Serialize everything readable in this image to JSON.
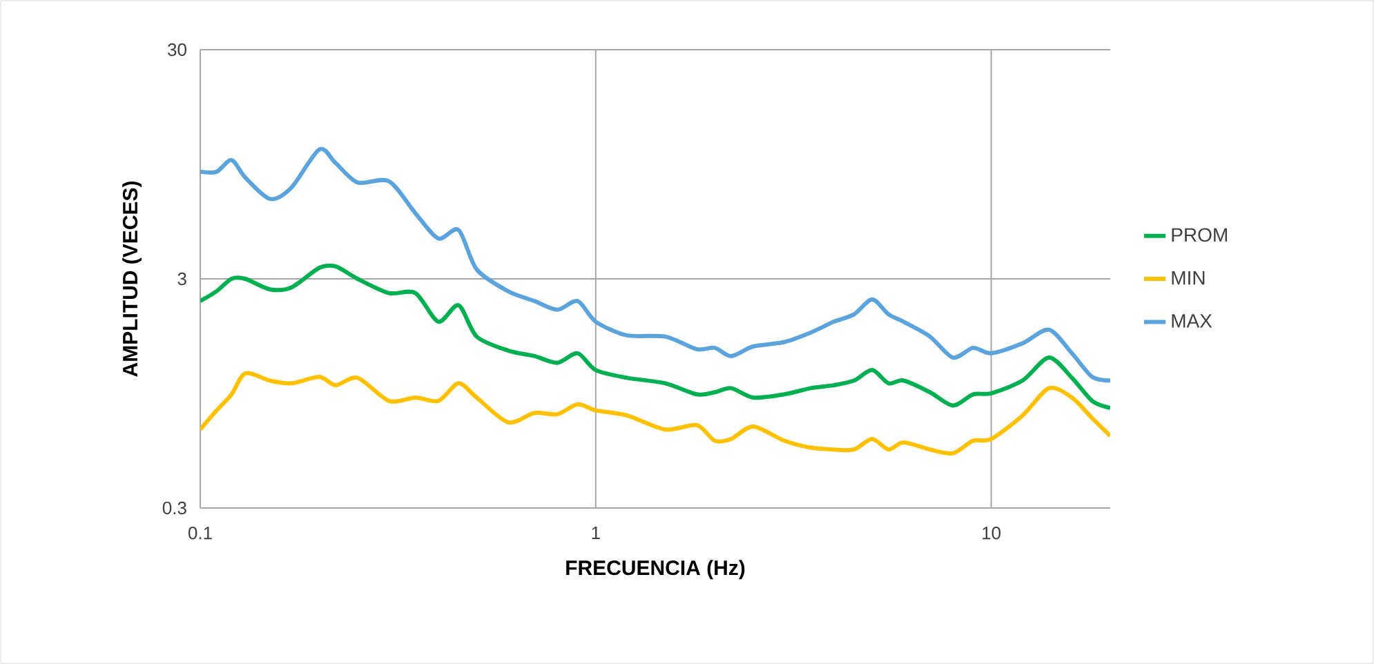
{
  "chart_data": {
    "type": "line",
    "xlabel": "FRECUENCIA (Hz)",
    "ylabel": "AMPLITUD (VECES)",
    "log": "xy",
    "grid": true,
    "legend": "right",
    "line_style": "solid",
    "marker": "none",
    "x": [
      0.1,
      0.11,
      0.12,
      0.13,
      0.15,
      0.17,
      0.2,
      0.22,
      0.25,
      0.3,
      0.35,
      0.4,
      0.45,
      0.5,
      0.6,
      0.7,
      0.8,
      0.9,
      1.0,
      1.2,
      1.5,
      1.8,
      2,
      2.2,
      2.5,
      3,
      3.5,
      4,
      4.5,
      5,
      5.5,
      6,
      7,
      8,
      9,
      10,
      12,
      14,
      16,
      18,
      20
    ],
    "xlim": [
      0.1,
      20
    ],
    "xticks": [
      0.1,
      1,
      10
    ],
    "ylim": [
      0.3,
      30
    ],
    "yticks": [
      0.3,
      3,
      30
    ],
    "series": [
      {
        "name": "PROM",
        "color": "#00b050",
        "values": [
          2.4,
          2.65,
          3.0,
          3.0,
          2.7,
          2.75,
          3.35,
          3.4,
          3.0,
          2.6,
          2.6,
          1.95,
          2.3,
          1.68,
          1.46,
          1.38,
          1.29,
          1.42,
          1.2,
          1.11,
          1.05,
          0.94,
          0.96,
          1.0,
          0.91,
          0.94,
          1.0,
          1.03,
          1.08,
          1.2,
          1.05,
          1.08,
          0.96,
          0.84,
          0.94,
          0.95,
          1.08,
          1.36,
          1.11,
          0.88,
          0.82
        ]
      },
      {
        "name": "MIN",
        "color": "#ffc000",
        "values": [
          0.66,
          0.8,
          0.94,
          1.16,
          1.08,
          1.05,
          1.12,
          1.03,
          1.11,
          0.88,
          0.91,
          0.88,
          1.05,
          0.91,
          0.71,
          0.78,
          0.77,
          0.85,
          0.8,
          0.76,
          0.66,
          0.69,
          0.59,
          0.6,
          0.68,
          0.59,
          0.55,
          0.54,
          0.54,
          0.6,
          0.54,
          0.58,
          0.54,
          0.52,
          0.59,
          0.6,
          0.76,
          1.0,
          0.91,
          0.74,
          0.62
        ]
      },
      {
        "name": "MAX",
        "color": "#5ba3dc",
        "values": [
          8.8,
          8.8,
          9.9,
          8.3,
          6.7,
          7.5,
          11,
          9.6,
          7.9,
          8.0,
          5.8,
          4.5,
          4.9,
          3.3,
          2.65,
          2.4,
          2.2,
          2.4,
          1.95,
          1.7,
          1.68,
          1.48,
          1.5,
          1.38,
          1.52,
          1.59,
          1.75,
          1.95,
          2.1,
          2.44,
          2.1,
          1.95,
          1.68,
          1.36,
          1.5,
          1.42,
          1.57,
          1.8,
          1.42,
          1.12,
          1.08
        ]
      }
    ]
  }
}
